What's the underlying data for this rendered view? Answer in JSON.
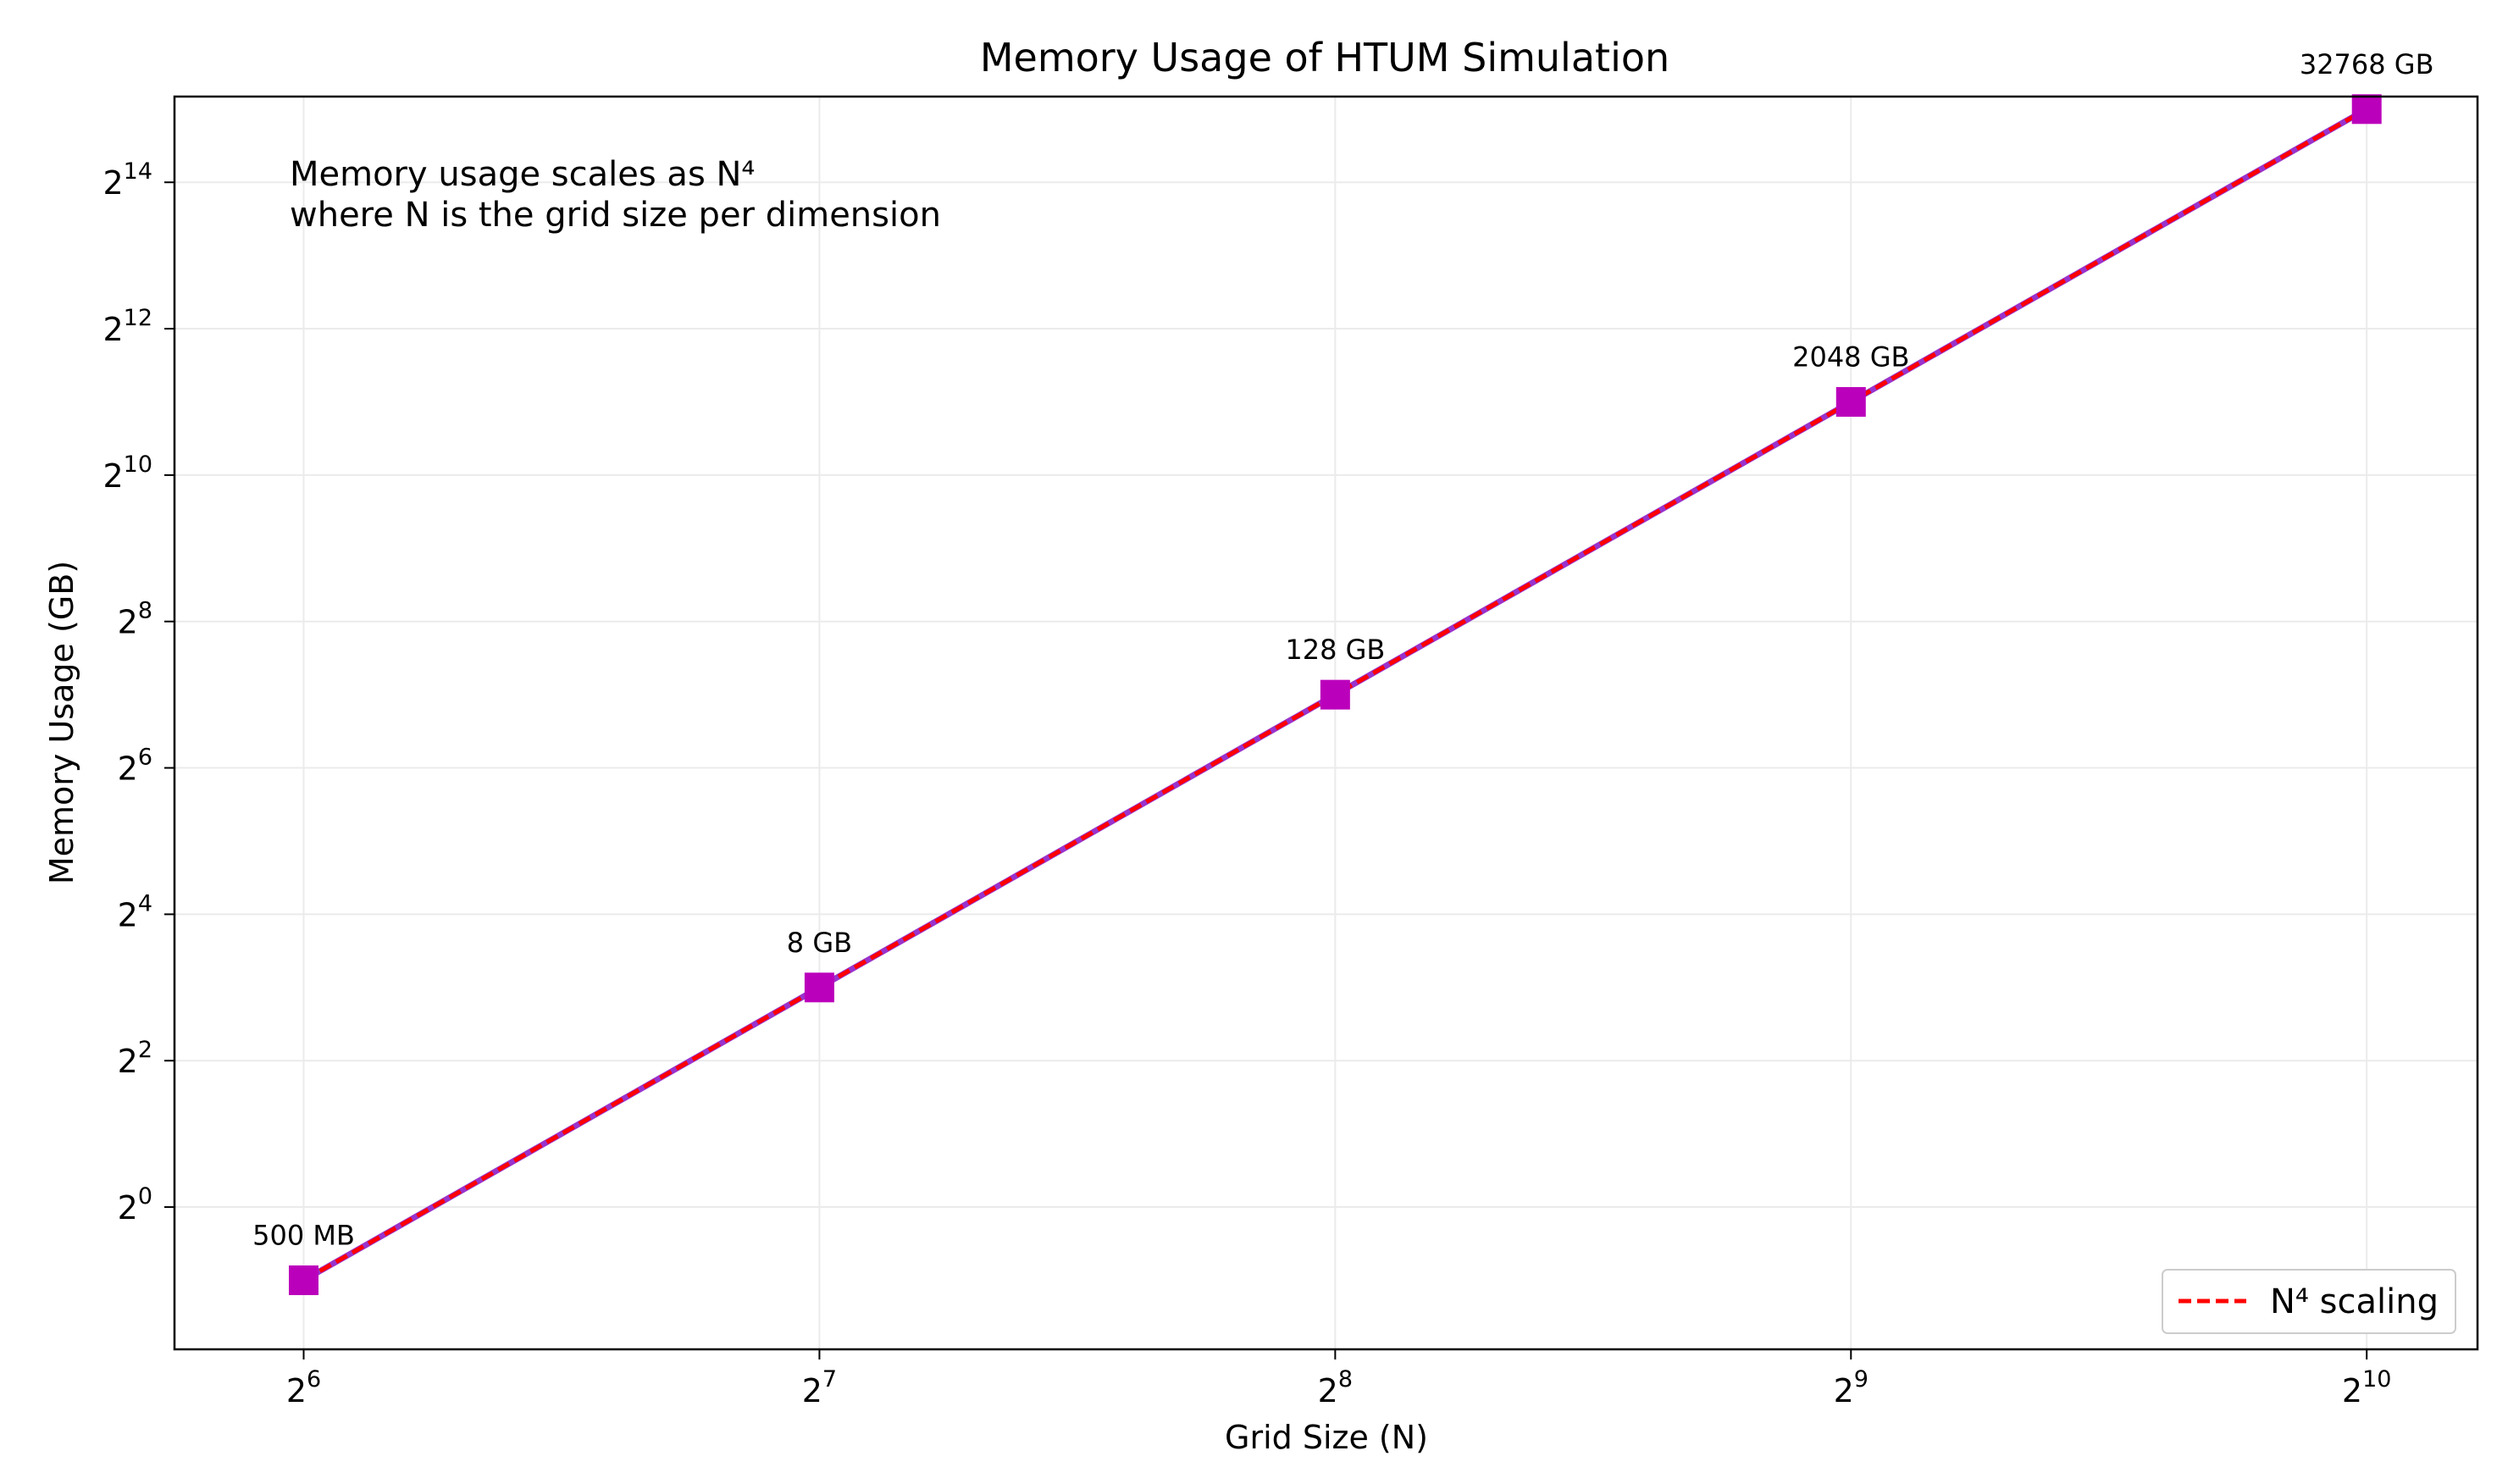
{
  "chart_data": {
    "type": "line",
    "title": "Memory Usage of HTUM Simulation",
    "xlabel": "Grid Size (N)",
    "ylabel": "Memory Usage (GB)",
    "x_scale": "log2",
    "y_scale": "log2",
    "x_ticks": [
      {
        "value": 64,
        "base": "2",
        "exp": "6"
      },
      {
        "value": 128,
        "base": "2",
        "exp": "7"
      },
      {
        "value": 256,
        "base": "2",
        "exp": "8"
      },
      {
        "value": 512,
        "base": "2",
        "exp": "9"
      },
      {
        "value": 1024,
        "base": "2",
        "exp": "10"
      }
    ],
    "y_ticks": [
      {
        "value": 1,
        "base": "2",
        "exp": "0"
      },
      {
        "value": 4,
        "base": "2",
        "exp": "2"
      },
      {
        "value": 16,
        "base": "2",
        "exp": "4"
      },
      {
        "value": 64,
        "base": "2",
        "exp": "6"
      },
      {
        "value": 256,
        "base": "2",
        "exp": "8"
      },
      {
        "value": 1024,
        "base": "2",
        "exp": "10"
      },
      {
        "value": 4096,
        "base": "2",
        "exp": "12"
      },
      {
        "value": 16384,
        "base": "2",
        "exp": "14"
      }
    ],
    "xlim": [
      53.8,
      1188.4
    ],
    "ylim": [
      0.26,
      36900
    ],
    "grid": true,
    "series": [
      {
        "name": "",
        "style": "solid",
        "color": "#9933cc",
        "marker": "square",
        "marker_color": "#bb00bb",
        "x": [
          64,
          128,
          256,
          512,
          1024
        ],
        "y": [
          0.5,
          8,
          128,
          2048,
          32768
        ],
        "labels": [
          "500 MB",
          "8 GB",
          "128 GB",
          "2048 GB",
          "32768 GB"
        ]
      },
      {
        "name": "N⁴ scaling",
        "style": "dashed",
        "color": "#ff0000",
        "x": [
          64,
          128,
          256,
          512,
          1024
        ],
        "y": [
          0.5,
          8,
          128,
          2048,
          32768
        ]
      }
    ],
    "annotation": {
      "line1": "Memory usage scales as N⁴",
      "line2": "where N is the grid size per dimension"
    },
    "legend": {
      "position": "lower-right",
      "entries": [
        "N⁴ scaling"
      ]
    }
  }
}
